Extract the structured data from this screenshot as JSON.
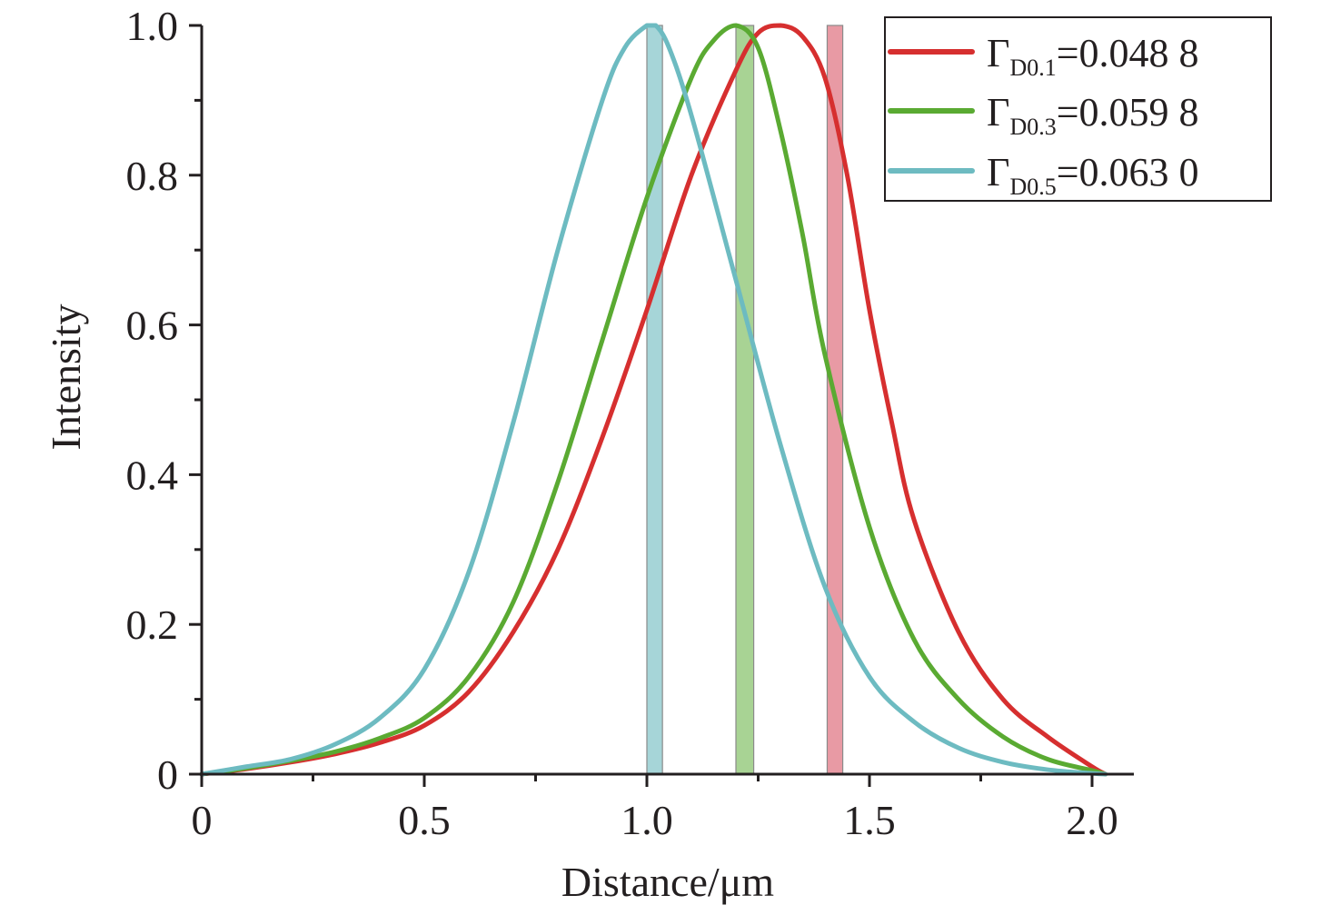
{
  "chart_data": {
    "type": "line",
    "title": "",
    "xlabel": "Distance/μm",
    "ylabel": "Intensity",
    "xlim": [
      0,
      2.1
    ],
    "ylim": [
      0,
      1.0
    ],
    "x_ticks": [
      0,
      0.5,
      1.0,
      1.5,
      2.0
    ],
    "x_tick_labels": [
      "0",
      "0.5",
      "1.0",
      "1.5",
      "2.0"
    ],
    "x_minor_ticks": [
      0.25,
      0.75,
      1.25,
      1.75
    ],
    "y_ticks": [
      0,
      0.2,
      0.4,
      0.6,
      0.8,
      1.0
    ],
    "y_tick_labels": [
      "0",
      "0.2",
      "0.4",
      "0.6",
      "0.8",
      "1.0"
    ],
    "y_minor_ticks": [
      0.1,
      0.3,
      0.5,
      0.7,
      0.9
    ],
    "grid": false,
    "legend_position": "top-right",
    "series": [
      {
        "name": "Γ",
        "subscript": "D0.1",
        "value_text": "=0.048 8",
        "color": "#d62f2f",
        "band_color": "#e89aa4",
        "band_x": [
          1.405,
          1.44
        ],
        "x": [
          0,
          0.1,
          0.2,
          0.3,
          0.4,
          0.5,
          0.6,
          0.7,
          0.8,
          0.9,
          1.0,
          1.1,
          1.2,
          1.25,
          1.3,
          1.35,
          1.4,
          1.45,
          1.5,
          1.55,
          1.6,
          1.7,
          1.8,
          1.9,
          2.0,
          2.03
        ],
        "y": [
          0,
          0.007,
          0.016,
          0.027,
          0.042,
          0.065,
          0.11,
          0.19,
          0.3,
          0.45,
          0.62,
          0.8,
          0.94,
          0.99,
          1.0,
          0.985,
          0.93,
          0.8,
          0.62,
          0.47,
          0.34,
          0.19,
          0.1,
          0.05,
          0.01,
          0
        ]
      },
      {
        "name": "Γ",
        "subscript": "D0.3",
        "value_text": "=0.059 8",
        "color": "#5aaa32",
        "band_color": "#a8d394",
        "band_x": [
          1.2,
          1.24
        ],
        "x": [
          0,
          0.1,
          0.2,
          0.3,
          0.4,
          0.5,
          0.6,
          0.7,
          0.8,
          0.9,
          1.0,
          1.1,
          1.15,
          1.2,
          1.25,
          1.3,
          1.35,
          1.4,
          1.5,
          1.6,
          1.7,
          1.8,
          1.9,
          2.0,
          2.03
        ],
        "y": [
          0,
          0.008,
          0.018,
          0.03,
          0.048,
          0.075,
          0.13,
          0.23,
          0.39,
          0.58,
          0.77,
          0.93,
          0.98,
          1.0,
          0.97,
          0.86,
          0.72,
          0.56,
          0.33,
          0.18,
          0.1,
          0.05,
          0.02,
          0.005,
          0
        ]
      },
      {
        "name": "Γ",
        "subscript": "D0.5",
        "value_text": "=0.063 0",
        "color": "#6dbbc1",
        "band_color": "#a6d5d8",
        "band_x": [
          1.0,
          1.035
        ],
        "x": [
          0,
          0.1,
          0.2,
          0.3,
          0.4,
          0.5,
          0.6,
          0.7,
          0.8,
          0.9,
          0.95,
          1.0,
          1.02,
          1.05,
          1.1,
          1.2,
          1.3,
          1.4,
          1.5,
          1.6,
          1.7,
          1.8,
          1.9,
          2.0,
          2.03
        ],
        "y": [
          0,
          0.01,
          0.02,
          0.04,
          0.075,
          0.14,
          0.27,
          0.47,
          0.7,
          0.9,
          0.97,
          1.0,
          1.0,
          0.97,
          0.88,
          0.66,
          0.44,
          0.25,
          0.13,
          0.07,
          0.035,
          0.016,
          0.006,
          0.001,
          0
        ]
      }
    ]
  }
}
